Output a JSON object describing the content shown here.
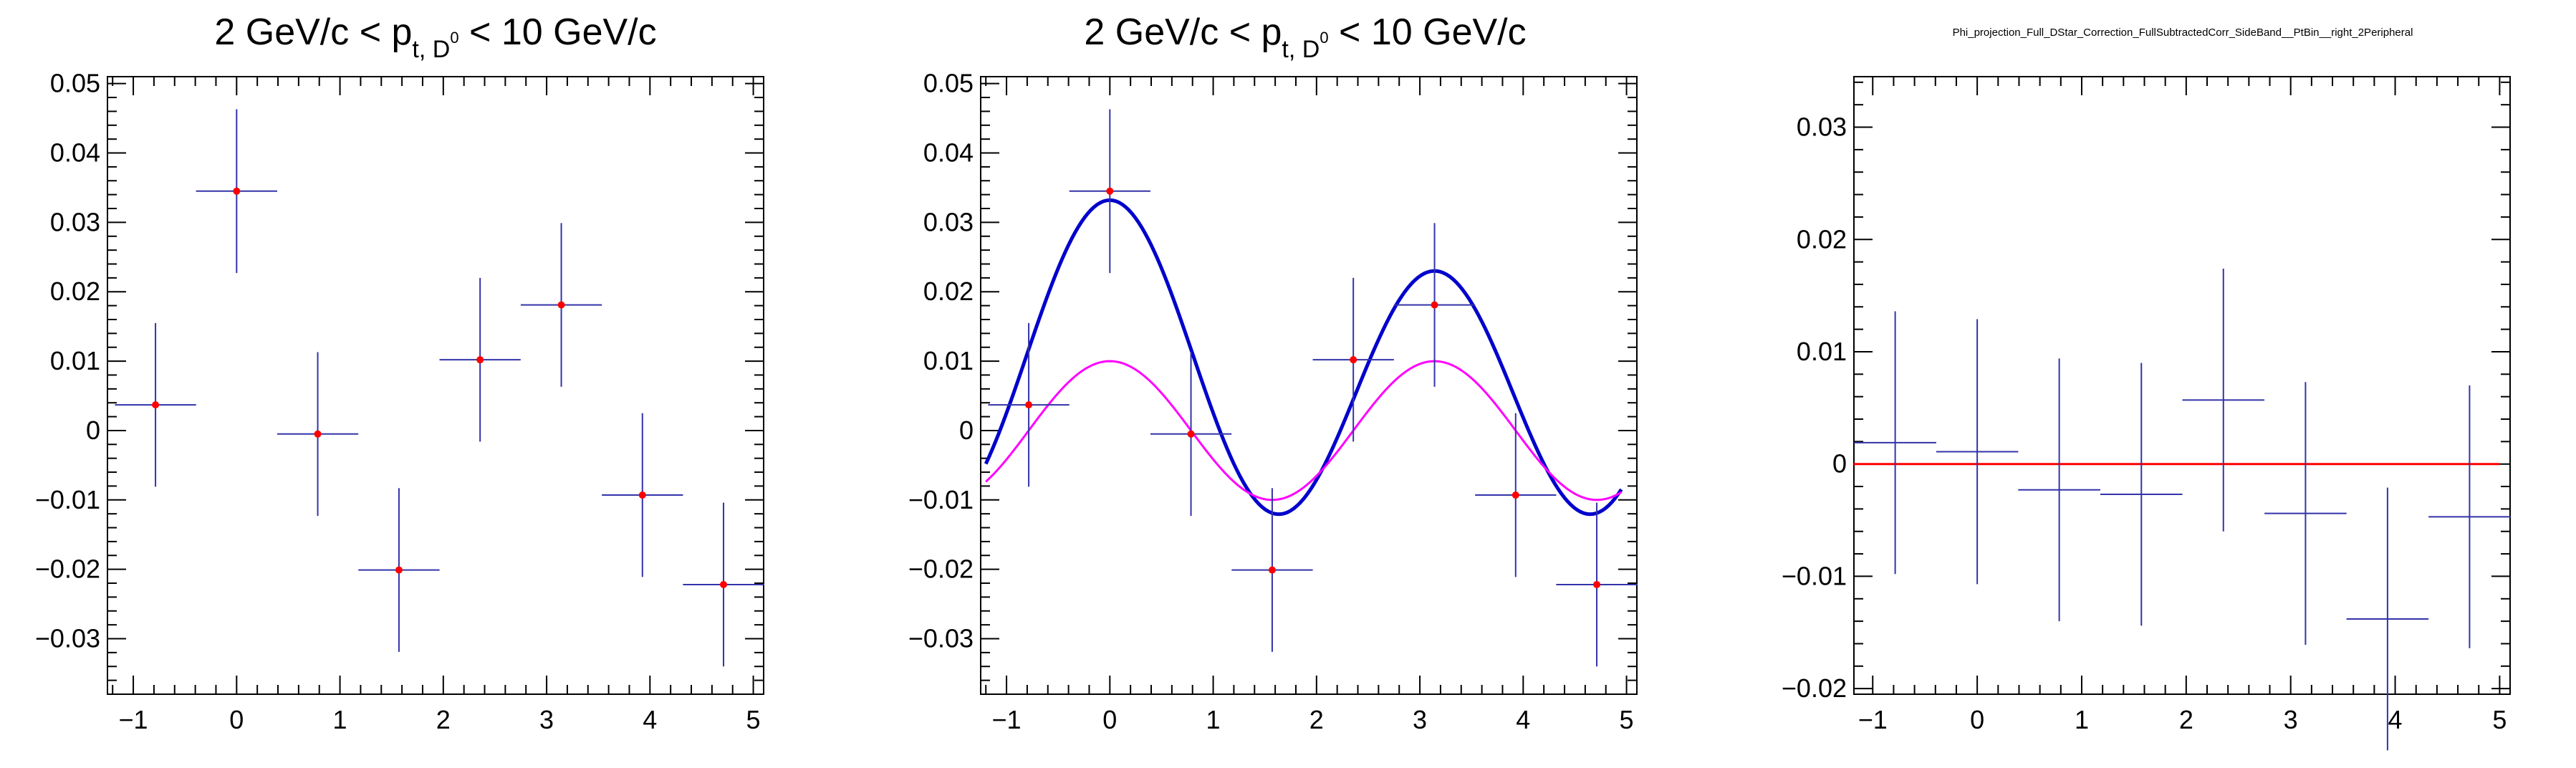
{
  "chart_data": [
    {
      "type": "scatter",
      "title": "2 GeV/c < p",
      "title_sub": "t, D",
      "title_sup": "0",
      "title_tail": " < 10 GeV/c",
      "xlim": [
        -1.25,
        5.1
      ],
      "ylim": [
        -0.038,
        0.051
      ],
      "x_ticks": [
        -1,
        0,
        1,
        2,
        3,
        4,
        5
      ],
      "x_tick_labels": [
        "−1",
        "0",
        "1",
        "2",
        "3",
        "4",
        "5"
      ],
      "y_ticks": [
        -0.03,
        -0.02,
        -0.01,
        0,
        0.01,
        0.02,
        0.03,
        0.04,
        0.05
      ],
      "y_tick_labels": [
        "−0.03",
        "−0.02",
        "−0.01",
        "0",
        "0.01",
        "0.02",
        "0.03",
        "0.04",
        "0.05"
      ],
      "grid": false,
      "series": [
        {
          "x": [
            -0.785,
            0.0,
            0.785,
            1.571,
            2.356,
            3.142,
            3.927,
            4.712
          ],
          "xerr": 0.3927,
          "y": [
            0.0037,
            0.0345,
            -0.0005,
            -0.0201,
            0.0102,
            0.0181,
            -0.0093,
            -0.0222
          ],
          "yerr": [
            0.0118,
            0.0118,
            0.0118,
            0.0118,
            0.0118,
            0.0118,
            0.0118,
            0.0118
          ]
        }
      ],
      "colors": {
        "points": "#ff0000",
        "errors": "#3333aa"
      }
    },
    {
      "type": "scatter",
      "title": "2 GeV/c < p",
      "title_sub": "t, D",
      "title_sup": "0",
      "title_tail": " < 10 GeV/c",
      "xlim": [
        -1.25,
        5.1
      ],
      "ylim": [
        -0.038,
        0.051
      ],
      "x_ticks": [
        -1,
        0,
        1,
        2,
        3,
        4,
        5
      ],
      "x_tick_labels": [
        "−1",
        "0",
        "1",
        "2",
        "3",
        "4",
        "5"
      ],
      "y_ticks": [
        -0.03,
        -0.02,
        -0.01,
        0,
        0.01,
        0.02,
        0.03,
        0.04,
        0.05
      ],
      "y_tick_labels": [
        "−0.03",
        "−0.02",
        "−0.01",
        "0",
        "0.01",
        "0.02",
        "0.03",
        "0.04",
        "0.05"
      ],
      "grid": false,
      "series": [
        {
          "x": [
            -0.785,
            0.0,
            0.785,
            1.571,
            2.356,
            3.142,
            3.927,
            4.712
          ],
          "xerr": 0.3927,
          "y": [
            0.0037,
            0.0345,
            -0.0005,
            -0.0201,
            0.0102,
            0.0181,
            -0.0093,
            -0.0222
          ],
          "yerr": [
            0.0118,
            0.0118,
            0.0118,
            0.0118,
            0.0118,
            0.0118,
            0.0118,
            0.0118
          ]
        }
      ],
      "curves": [
        {
          "type": "fit",
          "formula": "0.0081 + 0.0051*cos(x) + 0.020*cos(2x)",
          "x_range": [
            -1.2,
            4.95
          ],
          "color": "#0000cc"
        },
        {
          "type": "modulation",
          "formula": "0.010*cos(2x)",
          "x_range": [
            -1.2,
            4.95
          ],
          "color": "#ff00ff"
        }
      ],
      "colors": {
        "points": "#ff0000",
        "errors": "#3333aa"
      }
    },
    {
      "type": "scatter",
      "title": "Phi_projection_Full_DStar_Correction_FullSubtractedCorr_SideBand__PtBin__right_2Peripheral",
      "xlim": [
        -1.18,
        5.1
      ],
      "ylim": [
        -0.0205,
        0.0345
      ],
      "x_ticks": [
        -1,
        0,
        1,
        2,
        3,
        4,
        5
      ],
      "x_tick_labels": [
        "−1",
        "0",
        "1",
        "2",
        "3",
        "4",
        "5"
      ],
      "y_ticks": [
        -0.02,
        -0.01,
        0,
        0.01,
        0.02,
        0.03
      ],
      "y_tick_labels": [
        "−0.02",
        "−0.01",
        "0",
        "0.01",
        "0.02",
        "0.03"
      ],
      "grid": false,
      "series": [
        {
          "x": [
            -0.785,
            0.0,
            0.785,
            1.571,
            2.356,
            3.142,
            3.927,
            4.712
          ],
          "xerr": 0.3927,
          "y": [
            0.0019,
            0.0011,
            -0.0023,
            -0.0027,
            0.0057,
            -0.0044,
            -0.0138,
            -0.0047
          ],
          "yerr": [
            0.0117,
            0.0118,
            0.0117,
            0.0117,
            0.0117,
            0.0117,
            0.0117,
            0.0117
          ]
        }
      ],
      "curves": [
        {
          "type": "line",
          "formula": "0",
          "x_range": [
            -1.18,
            5.0
          ],
          "color": "#ff0000"
        }
      ],
      "colors": {
        "points": "#ff0000",
        "errors": "#3333aa"
      }
    }
  ]
}
